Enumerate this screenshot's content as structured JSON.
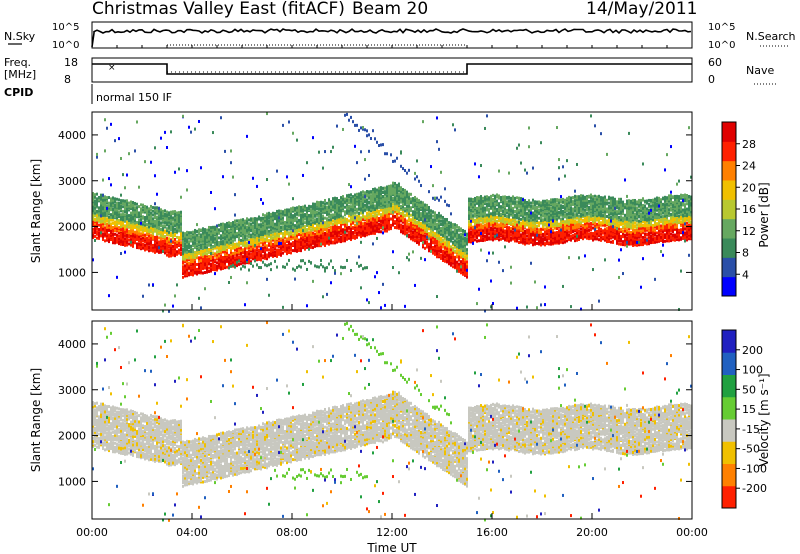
{
  "header": {
    "title": "Christmas Valley East (fitACF)",
    "beam": "Beam 20",
    "date": "14/May/2011"
  },
  "top_panels": {
    "nsky_label": "N.Sky",
    "nsky_ticks": [
      "10^5",
      "10^0"
    ],
    "nsearch_label": "N.Search",
    "freq_label_1": "Freq.",
    "freq_label_2": "[MHz]",
    "freq_ticks": [
      "18",
      "8"
    ],
    "nave_label": "Nave",
    "nave_ticks": [
      "60",
      "0"
    ],
    "cpid_label": "CPID",
    "cpid_value": "normal 150 IF"
  },
  "chart_data": [
    {
      "type": "heatmap",
      "name": "power",
      "ylabel": "Slant Range [km]",
      "ylim": [
        180,
        4500
      ],
      "yticks": [
        "1000",
        "2000",
        "3000",
        "4000"
      ],
      "colorbar_label": "Power [dB]",
      "colorbar_ticks": [
        "4",
        "8",
        "12",
        "16",
        "20",
        "24",
        "28"
      ],
      "colorbar_range": [
        0,
        30
      ],
      "colors": [
        "#0000ff",
        "#2a4fa8",
        "#3a8a5a",
        "#66a860",
        "#b8c830",
        "#f0c000",
        "#ff8000",
        "#ff2000",
        "#e00000"
      ]
    },
    {
      "type": "heatmap",
      "name": "velocity",
      "ylabel": "Slant Range [km]",
      "ylim": [
        180,
        4500
      ],
      "yticks": [
        "1000",
        "2000",
        "3000",
        "4000"
      ],
      "colorbar_label": "Velocity [m s⁻¹]",
      "colorbar_ticks": [
        "200",
        "100",
        "50",
        "15",
        "-15",
        "-50",
        "-100",
        "-200"
      ],
      "colors": [
        "#2020c0",
        "#2060c0",
        "#20a040",
        "#66cc33",
        "#c8c8c0",
        "#f0c000",
        "#ff8000",
        "#ff2000"
      ]
    }
  ],
  "xaxis": {
    "label": "Time UT",
    "ticks": [
      "00:00",
      "04:00",
      "08:00",
      "12:00",
      "16:00",
      "20:00",
      "00:00"
    ]
  }
}
